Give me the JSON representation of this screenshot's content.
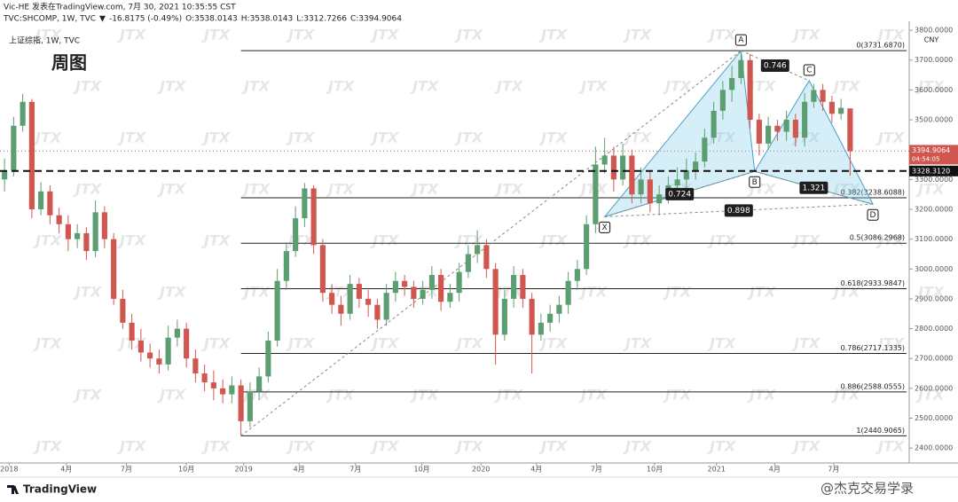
{
  "header": {
    "line1": "Vic-HE 发表在TradingView.com, 7月 30, 2021 10:35:55 CST",
    "symbol": "TVC:SHCOMP, 1W, TVC",
    "arrow": "▼",
    "change": "-16.8175 (-0.49%)",
    "ohlc": [
      "O:3538.0143",
      "H:3538.0143",
      "L:3312.7266",
      "C:3394.9064"
    ]
  },
  "watermark": "JTX",
  "footer": {
    "brand": "TradingView",
    "credit": "@杰克交易学录"
  },
  "chart_data": {
    "type": "candlestick",
    "title": "上证综指, 1W, TVC",
    "subtitle": "周图",
    "currency": "CNY",
    "up_color": "#5c9e72",
    "down_color": "#d15650",
    "open": [
      3300,
      3330,
      3480,
      3560,
      3200,
      3260,
      3180,
      3150,
      3100,
      3120,
      3060,
      3190,
      3100,
      2900,
      2820,
      2760,
      2720,
      2700,
      2680,
      2770,
      2800,
      2700,
      2650,
      2620,
      2600,
      2580,
      2610,
      2490,
      2590,
      2640,
      2760,
      2960,
      3060,
      3170,
      3270,
      3080,
      2920,
      2880,
      2850,
      2950,
      2900,
      2880,
      2830,
      2920,
      2960,
      2940,
      2900,
      2930,
      2980,
      2890,
      2920,
      2990,
      3050,
      3080,
      3000,
      2780,
      2900,
      2980,
      2900,
      2780,
      2820,
      2850,
      2880,
      2960,
      3000,
      3150,
      3350,
      3380,
      3300,
      3380,
      3250,
      3300,
      3220,
      3250,
      3280,
      3300,
      3330,
      3360,
      3440,
      3530,
      3600,
      3640,
      3700,
      3500,
      3420,
      3480,
      3460,
      3500,
      3440,
      3560,
      3600,
      3560,
      3520,
      3538.0143
    ],
    "high": [
      3370,
      3510,
      3587,
      3570,
      3290,
      3280,
      3205,
      3180,
      3150,
      3140,
      3230,
      3210,
      3120,
      2930,
      2850,
      2800,
      2750,
      2730,
      2810,
      2830,
      2820,
      2730,
      2680,
      2660,
      2630,
      2640,
      2630,
      2620,
      2670,
      2790,
      3000,
      3090,
      3210,
      3288,
      3280,
      3100,
      2950,
      2910,
      2980,
      2970,
      2930,
      2900,
      2950,
      2990,
      2980,
      2960,
      2960,
      3010,
      3000,
      2950,
      3020,
      3080,
      3130,
      3100,
      3020,
      2930,
      3010,
      3000,
      2920,
      2850,
      2880,
      2910,
      2990,
      3030,
      3180,
      3410,
      3440,
      3410,
      3420,
      3400,
      3340,
      3330,
      3280,
      3310,
      3340,
      3370,
      3390,
      3470,
      3560,
      3630,
      3680,
      3731.687,
      3720,
      3520,
      3510,
      3500,
      3530,
      3520,
      3590,
      3620,
      3620,
      3580,
      3570,
      3538.0143
    ],
    "low": [
      3260,
      3310,
      3460,
      3170,
      3180,
      3150,
      3120,
      3060,
      3070,
      3030,
      3040,
      3070,
      2880,
      2800,
      2730,
      2690,
      2670,
      2650,
      2660,
      2740,
      2670,
      2620,
      2590,
      2560,
      2550,
      2550,
      2440.9065,
      2470,
      2560,
      2620,
      2740,
      2930,
      3040,
      3140,
      3050,
      2890,
      2850,
      2810,
      2830,
      2870,
      2840,
      2800,
      2810,
      2890,
      2910,
      2870,
      2880,
      2900,
      2860,
      2870,
      2890,
      2970,
      3020,
      2970,
      2680,
      2760,
      2870,
      2870,
      2650,
      2760,
      2790,
      2820,
      2850,
      2930,
      2980,
      3120,
      3320,
      3260,
      3280,
      3220,
      3220,
      3190,
      3180,
      3220,
      3250,
      3270,
      3300,
      3340,
      3420,
      3500,
      3560,
      3620,
      3470,
      3380,
      3400,
      3430,
      3430,
      3410,
      3410,
      3540,
      3530,
      3490,
      3500,
      3312.7266
    ],
    "close": [
      3330,
      3480,
      3560,
      3200,
      3260,
      3180,
      3150,
      3100,
      3120,
      3060,
      3190,
      3100,
      2900,
      2820,
      2760,
      2720,
      2700,
      2680,
      2770,
      2800,
      2700,
      2650,
      2620,
      2600,
      2580,
      2610,
      2490,
      2590,
      2640,
      2760,
      2960,
      3060,
      3170,
      3270,
      3080,
      2920,
      2880,
      2850,
      2950,
      2900,
      2880,
      2830,
      2920,
      2960,
      2940,
      2900,
      2930,
      2980,
      2890,
      2920,
      2990,
      3050,
      3080,
      3000,
      2780,
      2900,
      2980,
      2900,
      2780,
      2820,
      2850,
      2880,
      2960,
      3000,
      3150,
      3350,
      3380,
      3300,
      3380,
      3250,
      3300,
      3220,
      3250,
      3280,
      3300,
      3330,
      3360,
      3440,
      3530,
      3600,
      3640,
      3700,
      3500,
      3420,
      3480,
      3460,
      3500,
      3440,
      3560,
      3600,
      3560,
      3520,
      3540,
      3394.9064
    ],
    "countdown": "04:54:05",
    "level": {
      "value": 3328.312,
      "label": "3328.3120"
    },
    "xlim": [
      0,
      100
    ],
    "xticks": [
      {
        "value": 1,
        "label": "2018"
      },
      {
        "value": 7.3,
        "label": "4月"
      },
      {
        "value": 13.9,
        "label": "7月"
      },
      {
        "value": 20.5,
        "label": "10月"
      },
      {
        "value": 26.8,
        "label": "2019"
      },
      {
        "value": 32.9,
        "label": "4月"
      },
      {
        "value": 39.1,
        "label": "7月"
      },
      {
        "value": 46.4,
        "label": "10月"
      },
      {
        "value": 52.9,
        "label": "2020"
      },
      {
        "value": 59,
        "label": "4月"
      },
      {
        "value": 65.6,
        "label": "7月"
      },
      {
        "value": 72,
        "label": "10月"
      },
      {
        "value": 78.8,
        "label": "2021"
      },
      {
        "value": 85.2,
        "label": "4月"
      },
      {
        "value": 91.7,
        "label": "7月"
      }
    ],
    "ylim": [
      2350,
      3830
    ],
    "yticks": [
      {
        "value": 2400,
        "label": "2400.0000"
      },
      {
        "value": 2500,
        "label": "2500.0000"
      },
      {
        "value": 2600,
        "label": "2600.0000"
      },
      {
        "value": 2700,
        "label": "2700.0000"
      },
      {
        "value": 2800,
        "label": "2800.0000"
      },
      {
        "value": 2900,
        "label": "2900.0000"
      },
      {
        "value": 3000,
        "label": "3000.0000"
      },
      {
        "value": 3100,
        "label": "3100.0000"
      },
      {
        "value": 3200,
        "label": "3200.0000"
      },
      {
        "value": 3300,
        "label": "3300.0000"
      },
      {
        "value": 3400,
        "label": "3400.0000"
      },
      {
        "value": 3500,
        "label": "3500.0000"
      },
      {
        "value": 3600,
        "label": "3600.0000"
      },
      {
        "value": 3700,
        "label": "3700.0000"
      },
      {
        "value": 3800,
        "label": "3800.0000"
      }
    ],
    "fib_levels": [
      {
        "value": 3731.687,
        "label": "0(3731.6870)"
      },
      {
        "value": 3238.6088,
        "label": "0.382(3238.6088)"
      },
      {
        "value": 3086.2968,
        "label": "0.5(3086.2968)"
      },
      {
        "value": 2933.9847,
        "label": "0.618(2933.9847)"
      },
      {
        "value": 2717.1335,
        "label": "0.786(2717.1335)"
      },
      {
        "value": 2588.0555,
        "label": "0.886(2588.0555)"
      },
      {
        "value": 2440.9065,
        "label": "1(2440.9065)"
      }
    ],
    "pattern": {
      "points": [
        {
          "label": "X",
          "x": 66.5,
          "y": 3175
        },
        {
          "label": "A",
          "x": 81.5,
          "y": 3731.687
        },
        {
          "label": "B",
          "x": 83,
          "y": 3327
        },
        {
          "label": "C",
          "x": 89,
          "y": 3631
        },
        {
          "label": "D",
          "x": 96,
          "y": 3217
        }
      ],
      "ratios": [
        "0.746",
        "0.724",
        "1.321",
        "0.898"
      ]
    }
  }
}
